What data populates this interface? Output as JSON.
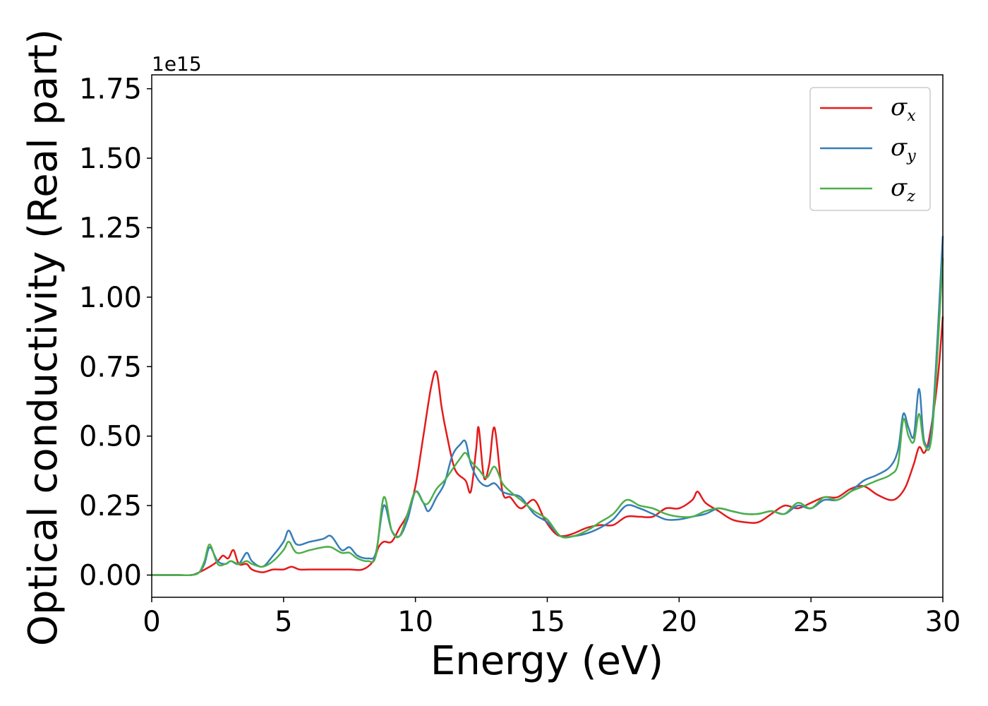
{
  "chart_data": {
    "type": "line",
    "title": "",
    "xlabel": "Energy (eV)",
    "ylabel": "Optical conductivity (Real part)",
    "y_offset_text": "1e15",
    "y_scale_factor": 1000000000000000.0,
    "xlim": [
      0,
      30
    ],
    "ylim": [
      -0.08,
      1.8
    ],
    "x_ticks": [
      0,
      5,
      10,
      15,
      20,
      25,
      30
    ],
    "x_tick_labels": [
      "0",
      "5",
      "10",
      "15",
      "20",
      "25",
      "30"
    ],
    "y_ticks": [
      0.0,
      0.25,
      0.5,
      0.75,
      1.0,
      1.25,
      1.5,
      1.75
    ],
    "y_tick_labels": [
      "0.00",
      "0.25",
      "0.50",
      "0.75",
      "1.00",
      "1.25",
      "1.50",
      "1.75"
    ],
    "grid": false,
    "legend_position": "top-right",
    "series": [
      {
        "name_symbol": "σ",
        "name_sub": "x",
        "color": "#e41a1c",
        "x": [
          0,
          1,
          1.5,
          1.8,
          2.2,
          2.5,
          2.7,
          2.9,
          3.1,
          3.3,
          3.6,
          3.8,
          4.2,
          4.6,
          5.0,
          5.3,
          5.6,
          6.0,
          6.5,
          7.0,
          7.5,
          8.0,
          8.4,
          8.6,
          8.8,
          9.1,
          9.4,
          9.7,
          10.0,
          10.3,
          10.6,
          10.8,
          11.0,
          11.2,
          11.5,
          11.9,
          12.1,
          12.3,
          12.4,
          12.6,
          12.8,
          13.0,
          13.3,
          13.6,
          14.0,
          14.5,
          14.9,
          15.3,
          15.6,
          16.0,
          16.5,
          17.0,
          17.5,
          18.0,
          18.5,
          19.0,
          19.5,
          20.0,
          20.5,
          20.7,
          21.0,
          21.5,
          22.0,
          22.5,
          23.0,
          23.5,
          24.0,
          24.5,
          25.0,
          25.5,
          26.0,
          26.5,
          27.0,
          27.5,
          28.0,
          28.3,
          28.6,
          28.9,
          29.1,
          29.3,
          29.5,
          29.8,
          30.0
        ],
        "y": [
          0.0,
          0.0,
          0.0,
          0.01,
          0.03,
          0.05,
          0.07,
          0.06,
          0.09,
          0.04,
          0.04,
          0.02,
          0.01,
          0.02,
          0.02,
          0.03,
          0.02,
          0.02,
          0.02,
          0.02,
          0.02,
          0.02,
          0.05,
          0.1,
          0.12,
          0.12,
          0.17,
          0.22,
          0.32,
          0.5,
          0.68,
          0.73,
          0.6,
          0.5,
          0.38,
          0.34,
          0.3,
          0.45,
          0.53,
          0.35,
          0.4,
          0.53,
          0.3,
          0.28,
          0.24,
          0.27,
          0.2,
          0.15,
          0.14,
          0.15,
          0.17,
          0.18,
          0.18,
          0.21,
          0.21,
          0.21,
          0.24,
          0.24,
          0.27,
          0.3,
          0.26,
          0.23,
          0.2,
          0.19,
          0.19,
          0.22,
          0.25,
          0.24,
          0.26,
          0.28,
          0.28,
          0.31,
          0.32,
          0.29,
          0.27,
          0.28,
          0.32,
          0.4,
          0.46,
          0.44,
          0.5,
          0.7,
          0.93
        ]
      },
      {
        "name_symbol": "σ",
        "name_sub": "y",
        "color": "#377eb8",
        "x": [
          0,
          1,
          1.5,
          1.8,
          2.0,
          2.2,
          2.5,
          2.8,
          3.0,
          3.3,
          3.6,
          3.8,
          4.2,
          4.6,
          5.0,
          5.2,
          5.5,
          6.0,
          6.5,
          6.8,
          7.2,
          7.5,
          7.8,
          8.2,
          8.5,
          8.8,
          9.1,
          9.4,
          9.7,
          10.0,
          10.3,
          10.5,
          10.8,
          11.1,
          11.4,
          11.7,
          11.9,
          12.1,
          12.4,
          12.7,
          13.0,
          13.3,
          13.6,
          14.0,
          14.5,
          15.0,
          15.5,
          16.0,
          16.5,
          17.0,
          17.5,
          18.0,
          18.5,
          19.0,
          19.5,
          20.0,
          20.5,
          21.0,
          21.5,
          22.0,
          22.5,
          23.0,
          23.5,
          24.0,
          24.5,
          25.0,
          25.5,
          26.0,
          26.5,
          27.0,
          27.5,
          28.0,
          28.3,
          28.5,
          28.7,
          28.9,
          29.1,
          29.3,
          29.6,
          30.0
        ],
        "y": [
          0.0,
          0.0,
          0.0,
          0.01,
          0.04,
          0.1,
          0.05,
          0.04,
          0.05,
          0.04,
          0.08,
          0.05,
          0.03,
          0.07,
          0.12,
          0.16,
          0.11,
          0.12,
          0.13,
          0.14,
          0.09,
          0.1,
          0.07,
          0.06,
          0.08,
          0.25,
          0.16,
          0.14,
          0.2,
          0.3,
          0.26,
          0.23,
          0.28,
          0.33,
          0.43,
          0.47,
          0.48,
          0.4,
          0.34,
          0.32,
          0.33,
          0.3,
          0.29,
          0.28,
          0.22,
          0.19,
          0.14,
          0.14,
          0.15,
          0.17,
          0.2,
          0.25,
          0.24,
          0.22,
          0.2,
          0.2,
          0.21,
          0.22,
          0.24,
          0.23,
          0.22,
          0.22,
          0.23,
          0.22,
          0.25,
          0.24,
          0.27,
          0.27,
          0.3,
          0.34,
          0.36,
          0.39,
          0.45,
          0.58,
          0.53,
          0.5,
          0.67,
          0.48,
          0.55,
          1.22
        ]
      },
      {
        "name_symbol": "σ",
        "name_sub": "z",
        "color": "#4daf4a",
        "x": [
          0,
          1,
          1.5,
          1.8,
          2.0,
          2.2,
          2.5,
          2.8,
          3.0,
          3.3,
          3.6,
          3.8,
          4.2,
          4.6,
          5.0,
          5.2,
          5.5,
          6.0,
          6.5,
          6.8,
          7.2,
          7.5,
          7.8,
          8.2,
          8.5,
          8.8,
          9.1,
          9.4,
          9.7,
          10.0,
          10.3,
          10.5,
          10.8,
          11.1,
          11.4,
          11.7,
          11.9,
          12.1,
          12.4,
          12.7,
          13.0,
          13.3,
          13.6,
          14.0,
          14.5,
          15.0,
          15.5,
          16.0,
          16.5,
          17.0,
          17.5,
          18.0,
          18.5,
          19.0,
          19.5,
          20.0,
          20.5,
          21.0,
          21.5,
          22.0,
          22.5,
          23.0,
          23.5,
          24.0,
          24.5,
          25.0,
          25.5,
          26.0,
          26.5,
          27.0,
          27.5,
          28.0,
          28.3,
          28.5,
          28.7,
          28.9,
          29.1,
          29.3,
          29.6,
          30.0
        ],
        "y": [
          0.0,
          0.0,
          0.0,
          0.01,
          0.05,
          0.11,
          0.04,
          0.04,
          0.05,
          0.04,
          0.05,
          0.04,
          0.03,
          0.05,
          0.09,
          0.12,
          0.08,
          0.09,
          0.1,
          0.1,
          0.08,
          0.08,
          0.06,
          0.05,
          0.07,
          0.28,
          0.16,
          0.14,
          0.22,
          0.3,
          0.26,
          0.26,
          0.31,
          0.34,
          0.38,
          0.42,
          0.44,
          0.41,
          0.38,
          0.35,
          0.39,
          0.33,
          0.3,
          0.27,
          0.23,
          0.2,
          0.14,
          0.14,
          0.16,
          0.19,
          0.22,
          0.27,
          0.25,
          0.24,
          0.22,
          0.21,
          0.21,
          0.23,
          0.24,
          0.23,
          0.22,
          0.22,
          0.23,
          0.22,
          0.26,
          0.24,
          0.28,
          0.27,
          0.3,
          0.32,
          0.34,
          0.36,
          0.4,
          0.56,
          0.5,
          0.48,
          0.58,
          0.47,
          0.52,
          1.14
        ]
      }
    ]
  }
}
